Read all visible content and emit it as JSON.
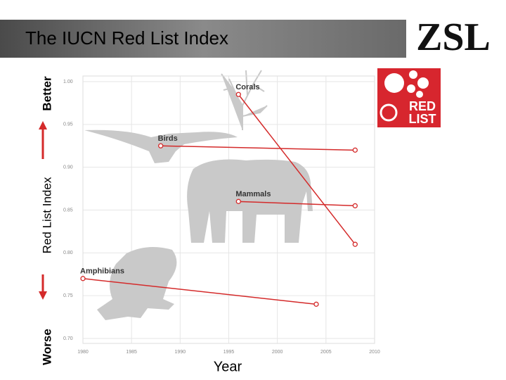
{
  "slide": {
    "logo": "ZSL",
    "badge": [
      "RED",
      "LIST"
    ]
  },
  "chart_data": {
    "type": "line",
    "title": "The IUCN Red List Index",
    "ylabel": "Red List Index",
    "xlabel": "Year",
    "annotations": [
      "Better",
      "Worse"
    ],
    "xlim": [
      1980,
      2010
    ],
    "xticks": [
      1980,
      1985,
      1990,
      1995,
      2000,
      2005,
      2010
    ],
    "ylim": [
      0.7,
      1.0
    ],
    "yticks": [
      {
        "value": 0.7,
        "label": "0.70"
      },
      0.75,
      {
        "value": 0.8,
        "label": "0.80"
      },
      0.85,
      {
        "value": 0.9,
        "label": "0.90"
      },
      0.95,
      {
        "value": 1.0,
        "label": "1.00"
      }
    ],
    "grid": true,
    "series": [
      {
        "name": "Corals",
        "color": "#d42a2a",
        "x": [
          1996,
          2008
        ],
        "values": [
          0.985,
          0.81
        ]
      },
      {
        "name": "Birds",
        "color": "#d42a2a",
        "x": [
          1988,
          2008
        ],
        "values": [
          0.925,
          0.92
        ]
      },
      {
        "name": "Mammals",
        "color": "#d42a2a",
        "x": [
          1996,
          2008
        ],
        "values": [
          0.86,
          0.855
        ]
      },
      {
        "name": "Amphibians",
        "color": "#d42a2a",
        "x": [
          1980,
          2004
        ],
        "values": [
          0.77,
          0.74
        ]
      }
    ]
  }
}
